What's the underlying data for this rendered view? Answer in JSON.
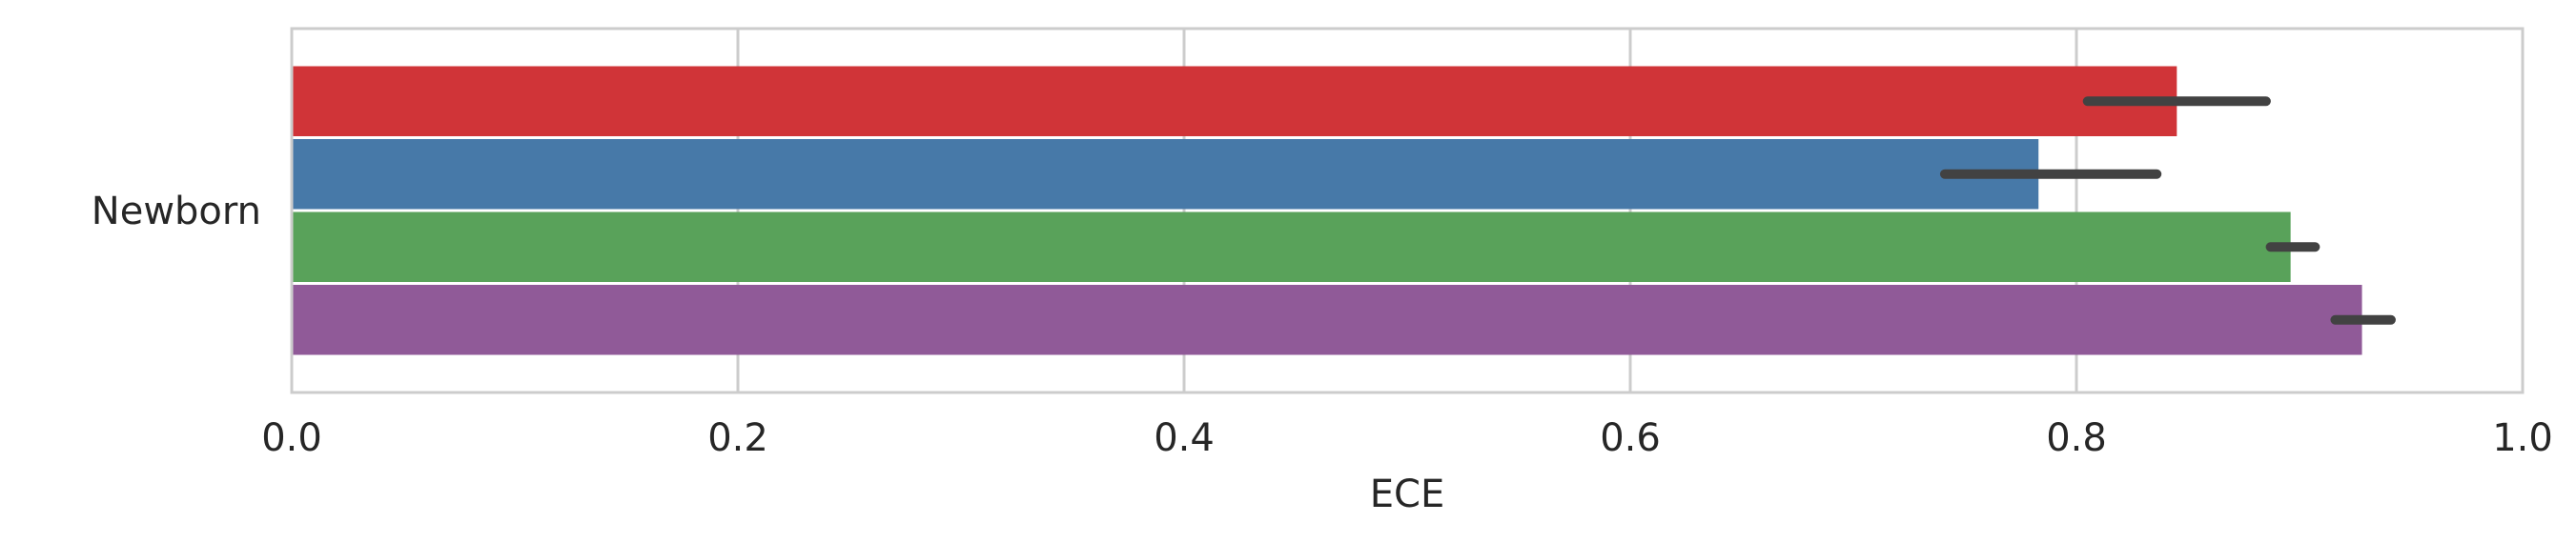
{
  "chart_data": {
    "type": "bar",
    "orientation": "horizontal",
    "categories": [
      "Newborn"
    ],
    "xlabel": "ECE",
    "ylabel": "",
    "xlim": [
      0.0,
      1.0
    ],
    "xticks": [
      "0.0",
      "0.2",
      "0.4",
      "0.6",
      "0.8",
      "1.0"
    ],
    "grid": "vertical",
    "legend": "none",
    "series": [
      {
        "color": "#d03438",
        "values": [
          0.845
        ],
        "error": [
          [
            0.805,
            0.885
          ]
        ]
      },
      {
        "color": "#4779a8",
        "values": [
          0.783
        ],
        "error": [
          [
            0.741,
            0.836
          ]
        ]
      },
      {
        "color": "#59a25a",
        "values": [
          0.896
        ],
        "error": [
          [
            0.887,
            0.907
          ]
        ]
      },
      {
        "color": "#905a98",
        "values": [
          0.928
        ],
        "error": [
          [
            0.916,
            0.941
          ]
        ]
      }
    ]
  }
}
